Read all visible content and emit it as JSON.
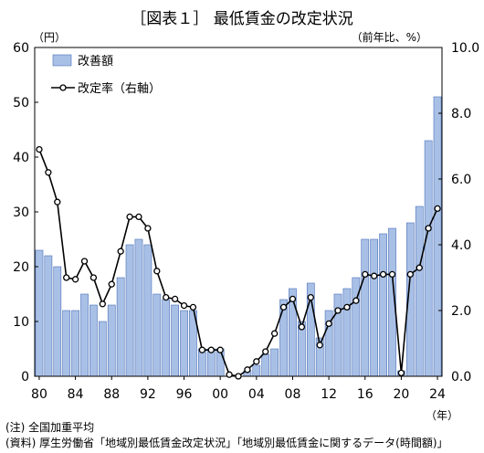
{
  "title": "［図表１］ 最低賃金の改定状況",
  "left_unit": "（円）",
  "right_unit": "（前年比、%）",
  "x_unit": "（年）",
  "notes": {
    "note1": "(注) 全国加重平均",
    "note2": "(資料) 厚生労働省「地域別最低賃金改定状況」「地域別最低賃金に関するデータ(時間額)」"
  },
  "colors": {
    "bar_fill": "#a9c0e6",
    "bar_stroke": "#4a6fb8",
    "line": "#000000",
    "marker_fill": "#ffffff"
  },
  "chart_data": {
    "type": "bar",
    "title": "［図表１］ 最低賃金の改定状況",
    "x": [
      1980,
      1981,
      1982,
      1983,
      1984,
      1985,
      1986,
      1987,
      1988,
      1989,
      1990,
      1991,
      1992,
      1993,
      1994,
      1995,
      1996,
      1997,
      1998,
      1999,
      2000,
      2001,
      2002,
      2003,
      2004,
      2005,
      2006,
      2007,
      2008,
      2009,
      2010,
      2011,
      2012,
      2013,
      2014,
      2015,
      2016,
      2017,
      2018,
      2019,
      2020,
      2021,
      2022,
      2023,
      2024
    ],
    "x_tick_labels": [
      "80",
      "84",
      "88",
      "92",
      "96",
      "00",
      "04",
      "08",
      "12",
      "16",
      "20",
      "24"
    ],
    "ylim_left": [
      0,
      60
    ],
    "yticks_left": [
      "0",
      "10",
      "20",
      "30",
      "40",
      "50",
      "60"
    ],
    "ylim_right": [
      0,
      10
    ],
    "yticks_right": [
      "0.0",
      "2.0",
      "4.0",
      "6.0",
      "8.0",
      "10.0"
    ],
    "legend_position": "top-left",
    "series": [
      {
        "name": "改善額",
        "kind": "bar",
        "axis": "left",
        "values": [
          23,
          22,
          20,
          12,
          12,
          15,
          13,
          10,
          13,
          18,
          24,
          25,
          24,
          15,
          14,
          13,
          12,
          12,
          5,
          5,
          5,
          0,
          0,
          1,
          2,
          4,
          5,
          14,
          16,
          10,
          17,
          7,
          12,
          15,
          16,
          18,
          25,
          25,
          26,
          27,
          1,
          28,
          31,
          43,
          51
        ]
      },
      {
        "name": "改定率（右軸）",
        "kind": "line",
        "axis": "right",
        "values": [
          6.9,
          6.2,
          5.3,
          3.0,
          2.95,
          3.5,
          3.0,
          2.2,
          2.8,
          3.8,
          4.85,
          4.85,
          4.5,
          3.2,
          2.4,
          2.35,
          2.15,
          2.1,
          0.8,
          0.8,
          0.8,
          0.05,
          0.0,
          0.2,
          0.45,
          0.75,
          1.3,
          2.1,
          2.35,
          1.5,
          2.4,
          0.95,
          1.6,
          2.0,
          2.1,
          2.3,
          3.1,
          3.05,
          3.1,
          3.1,
          0.1,
          3.1,
          3.3,
          4.5,
          5.1
        ]
      }
    ]
  }
}
